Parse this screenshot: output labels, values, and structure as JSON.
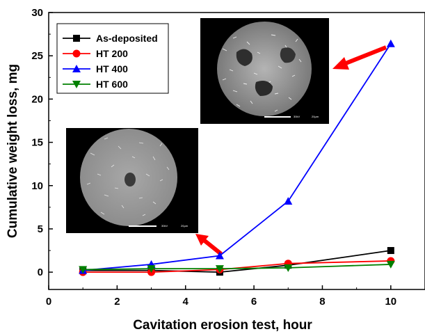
{
  "chart_data": {
    "type": "line",
    "title": "",
    "xlabel": "Cavitation erosion test, hour",
    "ylabel": "Cumulative weight loss, mg",
    "xlim": [
      0,
      11
    ],
    "ylim": [
      -2,
      30
    ],
    "xticks": [
      0,
      2,
      4,
      6,
      8,
      10
    ],
    "yticks": [
      0,
      5,
      10,
      15,
      20,
      25,
      30
    ],
    "grid": false,
    "legend_position": "top-left",
    "series": [
      {
        "name": "As-deposited",
        "color": "#000000",
        "marker": "square",
        "x": [
          1,
          3,
          5,
          7,
          10
        ],
        "y": [
          0.2,
          0.2,
          0.0,
          0.8,
          2.5
        ]
      },
      {
        "name": "HT 200",
        "color": "#ff0000",
        "marker": "circle",
        "x": [
          1,
          3,
          5,
          7,
          10
        ],
        "y": [
          0.0,
          0.0,
          0.3,
          1.0,
          1.3
        ]
      },
      {
        "name": "HT 400",
        "color": "#0000ff",
        "marker": "triangle-up",
        "x": [
          1,
          3,
          5,
          7,
          10
        ],
        "y": [
          0.2,
          0.9,
          1.9,
          8.2,
          26.4
        ]
      },
      {
        "name": "HT 600",
        "color": "#008000",
        "marker": "triangle-down",
        "x": [
          1,
          3,
          5,
          7,
          10
        ],
        "y": [
          0.3,
          0.4,
          0.4,
          0.5,
          0.9
        ]
      }
    ],
    "annotations": [
      {
        "type": "arrow",
        "color": "#ff0000",
        "from": [
          10,
          26.0
        ],
        "to": [
          8.2,
          23.9
        ]
      },
      {
        "type": "arrow",
        "color": "#ff0000",
        "from": [
          5.0,
          2.0
        ],
        "to": [
          4.25,
          4.5
        ]
      }
    ],
    "insets": [
      {
        "name": "sem-inset-low-loss",
        "description_visible": "SEM micrograph circular sample"
      },
      {
        "name": "sem-inset-high-loss",
        "description_visible": "SEM micrograph circular sample"
      }
    ]
  }
}
